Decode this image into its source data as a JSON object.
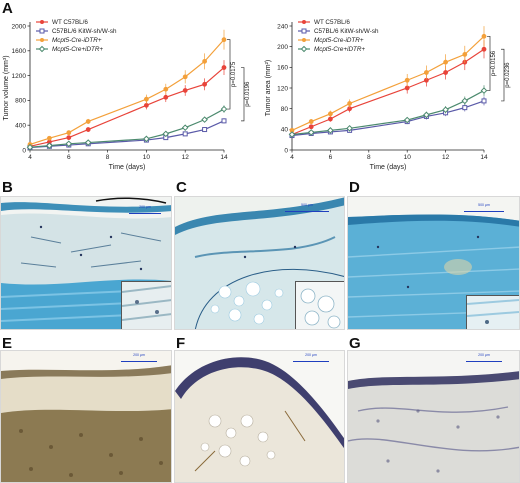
{
  "figure": {
    "panel_labels": [
      "A",
      "B",
      "C",
      "D",
      "E",
      "F",
      "G"
    ],
    "scalebar_labels": {
      "B": "200 µm",
      "C": "500 µm",
      "D": "500 µm",
      "E": "200 µm",
      "F": "200 µm",
      "G": "200 µm"
    }
  },
  "chart_data": [
    {
      "type": "line",
      "title": "",
      "xlabel": "Time (days)",
      "ylabel": "Tumor volume (mm³)",
      "xlim": [
        4,
        14
      ],
      "ylim": [
        0,
        2000
      ],
      "xticks": [
        4,
        6,
        8,
        10,
        12,
        14
      ],
      "yticks": [
        0,
        400,
        800,
        1200,
        1600,
        2000
      ],
      "legend": "top-left",
      "x": [
        4,
        5,
        6,
        7,
        10,
        11,
        12,
        13,
        14
      ],
      "series": [
        {
          "name": "WT C57BL/6",
          "color": "#e8443a",
          "marker": "circle",
          "values": [
            60,
            130,
            200,
            330,
            720,
            850,
            960,
            1060,
            1330
          ]
        },
        {
          "name": "C57BL/6 KitW-sh/W-sh",
          "color": "#5a5aa8",
          "marker": "square",
          "values": [
            40,
            60,
            80,
            100,
            160,
            200,
            260,
            330,
            470
          ]
        },
        {
          "name": "Mcpt5-Cre-iDTR+",
          "color": "#f3a03a",
          "marker": "circle",
          "values": [
            90,
            190,
            280,
            460,
            820,
            980,
            1180,
            1430,
            1780
          ]
        },
        {
          "name": "Mcpt5-Cre+iDTR+",
          "color": "#4c8a6e",
          "marker": "diamond",
          "values": [
            45,
            70,
            100,
            120,
            180,
            260,
            360,
            490,
            660
          ]
        }
      ],
      "annotations": [
        "p=0.0175",
        "p=0.0196"
      ]
    },
    {
      "type": "line",
      "title": "",
      "xlabel": "Time (days)",
      "ylabel": "Tumor area (mm²)",
      "xlim": [
        4,
        14
      ],
      "ylim": [
        0,
        240
      ],
      "xticks": [
        4,
        6,
        8,
        10,
        12,
        14
      ],
      "yticks": [
        0,
        40,
        80,
        120,
        160,
        200,
        240
      ],
      "legend": "top-left",
      "x": [
        4,
        5,
        6,
        7,
        10,
        11,
        12,
        13,
        14
      ],
      "series": [
        {
          "name": "WT C57BL/6",
          "color": "#e8443a",
          "marker": "circle",
          "values": [
            30,
            45,
            60,
            80,
            120,
            135,
            150,
            170,
            195
          ]
        },
        {
          "name": "C57BL/6 KitW-sh/W-sh",
          "color": "#5a5aa8",
          "marker": "square",
          "values": [
            28,
            32,
            35,
            38,
            55,
            65,
            72,
            82,
            95
          ]
        },
        {
          "name": "Mcpt5-Cre-iDTR+",
          "color": "#f3a03a",
          "marker": "circle",
          "values": [
            38,
            55,
            70,
            90,
            135,
            150,
            170,
            185,
            220
          ]
        },
        {
          "name": "Mcpt5-Cre+iDTR+",
          "color": "#4c8a6e",
          "marker": "diamond",
          "values": [
            30,
            34,
            38,
            42,
            58,
            68,
            78,
            95,
            115
          ]
        }
      ],
      "annotations": [
        "p=0.0156",
        "p=0.0236"
      ]
    }
  ]
}
